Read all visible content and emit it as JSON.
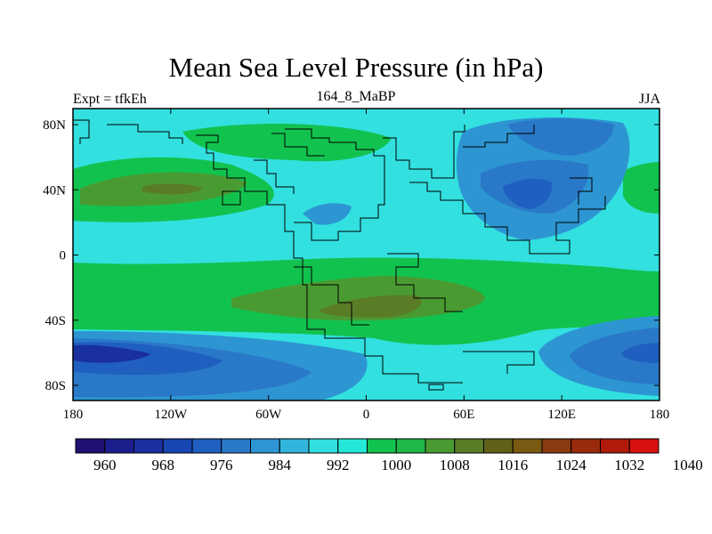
{
  "title": "Mean Sea Level Pressure (in hPa)",
  "left_string": "Expt = tfkEh",
  "center_string": "164_8_MaBP",
  "right_string": "JJA",
  "x_ticks": [
    "180",
    "120W",
    "60W",
    "0",
    "60E",
    "120E",
    "180"
  ],
  "y_ticks": [
    "80N",
    "40N",
    "0",
    "40S",
    "80S"
  ],
  "colorbar": {
    "colors": [
      "#1e0f73",
      "#1a1e8c",
      "#1a2fa0",
      "#1745b2",
      "#1f5fc0",
      "#2a78c8",
      "#2d95d2",
      "#32b5dc",
      "#32e0e0",
      "#26e8d8",
      "#12c24e",
      "#1fb84a",
      "#4a9a32",
      "#5a7c26",
      "#606018",
      "#7a5a12",
      "#8a3a10",
      "#9a2a0c",
      "#b01a0a",
      "#d81010"
    ],
    "labels": [
      "960",
      "968",
      "976",
      "984",
      "992",
      "1000",
      "1008",
      "1016",
      "1024",
      "1032",
      "1040"
    ]
  }
}
